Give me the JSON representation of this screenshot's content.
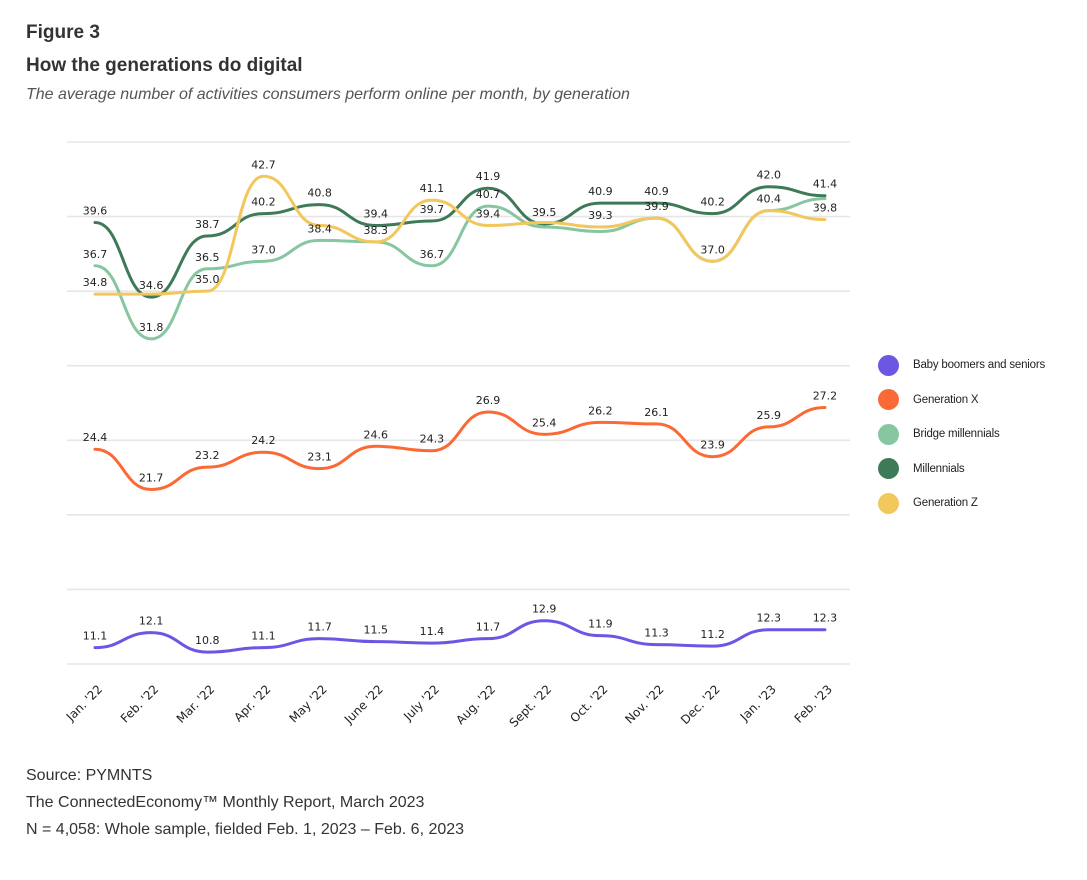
{
  "figure": {
    "number": "Figure 3",
    "title": "How the generations do digital",
    "subtitle": "The average number of activities consumers perform online per month, by generation"
  },
  "footer": {
    "source": "Source: PYMNTS",
    "report": "The ConnectedEconomy™ Monthly Report, March 2023",
    "sample": "N = 4,058: Whole sample, fielded Feb. 1, 2023 – Feb. 6, 2023"
  },
  "chart_data": {
    "type": "line",
    "title": "How the generations do digital",
    "subtitle": "The average number of activities consumers perform online per month, by generation",
    "xlabel": "",
    "ylabel": "",
    "ylim": [
      10,
      45
    ],
    "gridlines": [
      10,
      15,
      20,
      25,
      30,
      35,
      40,
      45
    ],
    "grid": true,
    "legend_position": "right",
    "categories": [
      "Jan. '22",
      "Feb. '22",
      "Mar. '22",
      "Apr. '22",
      "May '22",
      "June '22",
      "July '22",
      "Aug. '22",
      "Sept. '22",
      "Oct. '22",
      "Nov. '22",
      "Dec. '22",
      "Jan. '23",
      "Feb. '23"
    ],
    "series": [
      {
        "name": "Baby boomers and seniors",
        "color": "#6b57e3",
        "values": [
          11.1,
          12.1,
          10.8,
          11.1,
          11.7,
          11.5,
          11.4,
          11.7,
          12.9,
          11.9,
          11.3,
          11.2,
          12.3,
          12.3
        ],
        "labels": [
          "11.1",
          "12.1",
          "10.8",
          "11.1",
          "11.7",
          "11.5",
          "11.4",
          "11.7",
          "12.9",
          "11.9",
          "11.3",
          "11.2",
          "12.3",
          "12.3"
        ]
      },
      {
        "name": "Generation X",
        "color": "#fb6a35",
        "values": [
          24.4,
          21.7,
          23.2,
          24.2,
          23.1,
          24.6,
          24.3,
          26.9,
          25.4,
          26.2,
          26.1,
          23.9,
          25.9,
          27.2
        ],
        "labels": [
          "24.4",
          "21.7",
          "23.2",
          "24.2",
          "23.1",
          "24.6",
          "24.3",
          "26.9",
          "25.4",
          "26.2",
          "26.1",
          "23.9",
          "25.9",
          "27.2"
        ]
      },
      {
        "name": "Bridge millennials",
        "color": "#86c6a0",
        "values": [
          36.7,
          31.8,
          36.5,
          37.0,
          38.4,
          38.3,
          36.7,
          40.7,
          39.3,
          39.0,
          39.9,
          37.0,
          40.4,
          41.2
        ],
        "labels": [
          "36.7",
          "31.8",
          "36.5",
          "37.0",
          "38.4",
          "",
          "36.7",
          "40.7",
          "",
          "",
          "39.9",
          "37.0",
          "40.4",
          ""
        ]
      },
      {
        "name": "Millennials",
        "color": "#3f7a58",
        "values": [
          39.6,
          34.6,
          38.7,
          40.2,
          40.8,
          39.4,
          39.7,
          41.9,
          39.5,
          40.9,
          40.9,
          40.2,
          42.0,
          41.4
        ],
        "labels": [
          "39.6",
          "34.6",
          "38.7",
          "40.2",
          "40.8",
          "39.4",
          "39.7",
          "41.9",
          "39.5",
          "40.9",
          "40.9",
          "40.2",
          "42.0",
          "41.4"
        ]
      },
      {
        "name": "Generation Z",
        "color": "#f2c75c",
        "values": [
          34.8,
          34.8,
          35.0,
          42.7,
          39.4,
          38.3,
          41.1,
          39.4,
          39.6,
          39.3,
          39.9,
          37.0,
          40.4,
          39.8
        ],
        "labels": [
          "34.8",
          "",
          "35.0",
          "42.7",
          "",
          "38.3",
          "41.1",
          "39.4",
          "",
          "39.3",
          "",
          "",
          "",
          "39.8"
        ]
      }
    ]
  }
}
